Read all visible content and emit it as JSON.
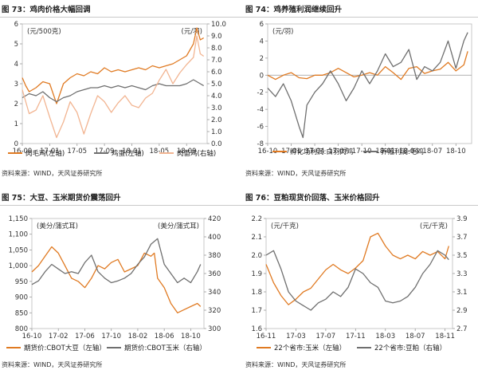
{
  "colors": {
    "orange": "#e07a22",
    "gray": "#6f6f6f",
    "pink": "#f2b592"
  },
  "panels": [
    {
      "title": "图 73：鸡肉价格大幅回调",
      "source": "资料来源：WIND，天风证券研究所"
    },
    {
      "title": "图 74：鸡养殖利润继续回升",
      "source": "资料来源：WIND，天风证券研究所"
    },
    {
      "title": "图 75：大豆、玉米期货价震荡回升",
      "source": "资料来源：WIND，天风证券研究所"
    },
    {
      "title": "图 76：豆粕现货价回落、玉米价格回升",
      "source": "资料来源：WIND，天风证券研究所"
    }
  ],
  "chart_data": [
    {
      "type": "line",
      "left_unit": "(元/500克)",
      "right_unit": "(元/羽)",
      "ylim_left": [
        0,
        6
      ],
      "yticks_left": [
        0,
        1,
        2,
        3,
        4,
        5,
        6
      ],
      "ylim_right": [
        0,
        10
      ],
      "yticks_right": [
        "0.0",
        "1.0",
        "2.0",
        "3.0",
        "4.0",
        "5.0",
        "6.0",
        "7.0",
        "8.0",
        "9.0",
        "10.0"
      ],
      "xlim": [
        0,
        27
      ],
      "xtick_pos": [
        0,
        4,
        8,
        12,
        16,
        20,
        24
      ],
      "xtick_labels": [
        "16-09",
        "17-01",
        "17-05",
        "17-09",
        "18-01",
        "18-05",
        "18-09"
      ],
      "series": [
        {
          "name": "肉毛鸡(左轴)",
          "axis": "left",
          "color": "#e07a22",
          "x": [
            0,
            0.5,
            1,
            2,
            3,
            4,
            5,
            6,
            7,
            8,
            9,
            10,
            11,
            12,
            13,
            14,
            15,
            16,
            17,
            18,
            19,
            20,
            21,
            22,
            23,
            24,
            25,
            25.5,
            26,
            26.5
          ],
          "y": [
            3.3,
            2.9,
            2.6,
            2.8,
            3.1,
            3.0,
            2.0,
            3.0,
            3.3,
            3.5,
            3.4,
            3.6,
            3.5,
            3.8,
            3.6,
            3.7,
            3.6,
            3.7,
            3.8,
            3.7,
            3.9,
            3.8,
            3.9,
            4.0,
            4.2,
            4.4,
            5.0,
            5.8,
            5.2,
            5.3
          ]
        },
        {
          "name": "鸡蛋(左轴)",
          "axis": "left",
          "color": "#6f6f6f",
          "x": [
            0,
            1,
            2,
            3,
            4,
            5,
            6,
            7,
            8,
            9,
            10,
            11,
            12,
            13,
            14,
            15,
            16,
            17,
            18,
            19,
            20,
            21,
            22,
            23,
            24,
            25,
            26,
            26.5
          ],
          "y": [
            2.3,
            2.5,
            2.4,
            2.6,
            2.3,
            2.1,
            2.3,
            2.4,
            2.6,
            2.7,
            2.8,
            2.8,
            2.9,
            2.8,
            2.9,
            2.8,
            2.9,
            2.8,
            2.7,
            2.9,
            3.0,
            2.9,
            2.9,
            2.9,
            3.0,
            3.2,
            3.0,
            2.9
          ]
        },
        {
          "name": "肉苗鸡(右轴)",
          "axis": "right",
          "color": "#f2b592",
          "x": [
            0,
            0.5,
            1,
            2,
            3,
            4,
            5,
            6,
            7,
            8,
            9,
            10,
            11,
            12,
            13,
            14,
            15,
            16,
            17,
            18,
            19,
            20,
            21,
            22,
            23,
            24,
            25,
            25.5,
            26,
            26.5
          ],
          "y": [
            4.5,
            3.5,
            2.5,
            2.8,
            4.0,
            2.2,
            0.5,
            1.8,
            3.5,
            2.6,
            0.8,
            2.5,
            4.0,
            3.5,
            2.6,
            3.4,
            4.0,
            3.2,
            3.0,
            3.8,
            4.2,
            5.3,
            6.2,
            5.0,
            5.9,
            6.6,
            7.2,
            9.0,
            7.5,
            7.3
          ]
        }
      ]
    },
    {
      "type": "line",
      "left_unit": "(元/羽)",
      "ylim_left": [
        -8,
        6
      ],
      "yticks_left": [
        -8,
        -6,
        -4,
        -2,
        0,
        2,
        4,
        6
      ],
      "xlim": [
        0,
        26
      ],
      "xtick_pos": [
        0,
        3,
        6,
        9,
        12,
        15,
        18,
        21,
        24
      ],
      "xtick_labels": [
        "16-10",
        "17-01",
        "17-04",
        "17-07",
        "17-10",
        "18-01",
        "18-04",
        "18-07",
        "18-10"
      ],
      "series": [
        {
          "name": "孵化场利润:白羽肉鸡",
          "axis": "left",
          "color": "#e07a22",
          "x": [
            0,
            1,
            2,
            3,
            4,
            5,
            6,
            7,
            8,
            9,
            10,
            11,
            12,
            13,
            14,
            15,
            16,
            17,
            18,
            19,
            20,
            21,
            22,
            23,
            24,
            25,
            25.5
          ],
          "y": [
            0,
            -0.5,
            0,
            0.3,
            -0.3,
            -0.4,
            0,
            0,
            0.3,
            0.8,
            0.3,
            -0.2,
            0,
            0.3,
            0,
            1.0,
            0.3,
            -0.5,
            0.8,
            1.0,
            0.2,
            0.5,
            0.7,
            1.5,
            0.5,
            1.2,
            2.8
          ]
        },
        {
          "name": "养殖利润:毛鸡",
          "axis": "left",
          "color": "#6f6f6f",
          "x": [
            0,
            1,
            2,
            3,
            4,
            4.5,
            5,
            6,
            7,
            8,
            9,
            10,
            11,
            12,
            13,
            14,
            15,
            16,
            17,
            18,
            19,
            20,
            21,
            22,
            23,
            24,
            25,
            25.5
          ],
          "y": [
            -1.5,
            -2.5,
            -1.0,
            -3.0,
            -6.0,
            -7.3,
            -3.5,
            -2.0,
            -1.0,
            0.5,
            -1.0,
            -3.0,
            -1.5,
            0.5,
            -1.0,
            0.5,
            2.5,
            1.0,
            1.5,
            3.0,
            -0.5,
            1.0,
            0.5,
            1.5,
            4.0,
            0.8,
            4.0,
            5.0
          ]
        }
      ]
    },
    {
      "type": "line",
      "left_unit": "(美分/蒲式耳)",
      "right_unit": "(美分/蒲式耳)",
      "ylim_left": [
        800,
        1150
      ],
      "yticks_left": [
        "800",
        "850",
        "900",
        "950",
        "1,000",
        "1,050",
        "1,100",
        "1,150"
      ],
      "ylim_right": [
        300,
        420
      ],
      "yticks_right": [
        "300",
        "320",
        "340",
        "360",
        "380",
        "400",
        "420"
      ],
      "xlim": [
        0,
        26
      ],
      "xtick_pos": [
        0,
        4,
        8,
        12,
        16,
        20,
        24
      ],
      "xtick_labels": [
        "16-10",
        "17-02",
        "17-06",
        "17-10",
        "18-02",
        "18-06",
        "18-10"
      ],
      "series": [
        {
          "name": "期货价:CBOT大豆（左轴）",
          "axis": "left",
          "color": "#e07a22",
          "x": [
            0,
            1,
            2,
            3,
            4,
            5,
            6,
            7,
            8,
            9,
            10,
            11,
            12,
            13,
            14,
            15,
            16,
            17,
            18,
            18.5,
            19,
            20,
            21,
            22,
            23,
            24,
            25,
            25.5
          ],
          "y": [
            980,
            1000,
            1030,
            1060,
            1040,
            1000,
            960,
            950,
            930,
            960,
            1000,
            990,
            1010,
            1020,
            980,
            990,
            1000,
            1040,
            1030,
            1040,
            960,
            930,
            880,
            850,
            860,
            870,
            880,
            870
          ]
        },
        {
          "name": "期货价:CBOT玉米（右轴）",
          "axis": "right",
          "color": "#6f6f6f",
          "x": [
            0,
            1,
            2,
            3,
            4,
            5,
            6,
            7,
            8,
            9,
            10,
            11,
            12,
            13,
            14,
            15,
            16,
            17,
            18,
            19,
            20,
            21,
            22,
            23,
            24,
            25,
            25.5
          ],
          "y": [
            348,
            352,
            362,
            370,
            365,
            360,
            362,
            360,
            372,
            380,
            362,
            355,
            350,
            352,
            355,
            360,
            370,
            378,
            392,
            398,
            370,
            360,
            350,
            355,
            350,
            362,
            370
          ]
        }
      ]
    },
    {
      "type": "line",
      "left_unit": "(元/千克)",
      "right_unit": "(元/千克)",
      "ylim_left": [
        1.6,
        2.2
      ],
      "yticks_left": [
        "1.6",
        "1.7",
        "1.8",
        "1.9",
        "2.0",
        "2.1",
        "2.2"
      ],
      "ylim_right": [
        2.7,
        3.9
      ],
      "yticks_right": [
        "2.7",
        "2.9",
        "3.1",
        "3.3",
        "3.5",
        "3.7",
        "3.9"
      ],
      "xlim": [
        0,
        25
      ],
      "xtick_pos": [
        0,
        4,
        8,
        12,
        16,
        20,
        24
      ],
      "xtick_labels": [
        "16-11",
        "17-03",
        "17-07",
        "17-11",
        "18-03",
        "18-07",
        "18-11"
      ],
      "series": [
        {
          "name": "22个省市:玉米（左轴）",
          "axis": "left",
          "color": "#e07a22",
          "x": [
            0,
            1,
            2,
            3,
            4,
            5,
            6,
            7,
            8,
            9,
            10,
            11,
            12,
            13,
            14,
            15,
            16,
            17,
            18,
            19,
            20,
            21,
            22,
            23,
            24,
            24.5
          ],
          "y": [
            1.95,
            1.85,
            1.78,
            1.73,
            1.76,
            1.8,
            1.82,
            1.87,
            1.92,
            1.95,
            1.92,
            1.9,
            1.93,
            1.97,
            2.1,
            2.12,
            2.05,
            2.0,
            1.98,
            2.0,
            1.98,
            2.02,
            2.0,
            2.02,
            1.98,
            2.05
          ]
        },
        {
          "name": "22个省市:豆粕（右轴）",
          "axis": "right",
          "color": "#6f6f6f",
          "x": [
            0,
            1,
            2,
            3,
            4,
            5,
            6,
            7,
            8,
            9,
            10,
            11,
            12,
            13,
            14,
            15,
            16,
            17,
            18,
            19,
            20,
            21,
            22,
            23,
            24,
            24.5
          ],
          "y": [
            3.5,
            3.55,
            3.35,
            3.1,
            3.0,
            2.95,
            2.9,
            2.98,
            3.02,
            3.1,
            3.05,
            3.15,
            3.35,
            3.3,
            3.2,
            3.15,
            3.0,
            2.98,
            3.0,
            3.05,
            3.15,
            3.3,
            3.4,
            3.55,
            3.5,
            3.45
          ]
        }
      ]
    }
  ]
}
